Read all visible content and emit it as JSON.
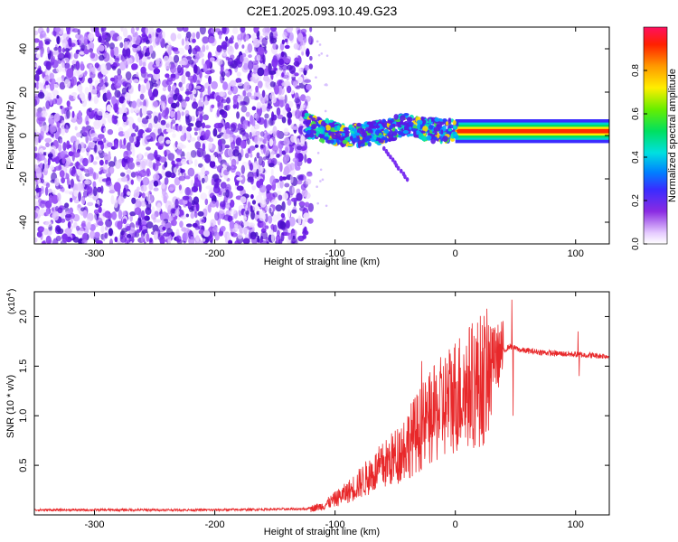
{
  "page": {
    "title": "C2E1.2025.093.10.49.G23"
  },
  "chart_data": [
    {
      "type": "heatmap",
      "xlabel": "Height of straight line (km)",
      "ylabel": "Frequency (Hz)",
      "xlim": [
        -350,
        128
      ],
      "ylim": [
        -50,
        50
      ],
      "xticks": [
        -300,
        -200,
        -100,
        0,
        100
      ],
      "yticks": [
        -40,
        -20,
        0,
        20,
        40
      ],
      "colorbar": {
        "label": "Normalized spectral amplitude",
        "range": [
          0.0,
          1.0
        ],
        "ticks": [
          "0.0",
          "0.2",
          "0.4",
          "0.6",
          "0.8"
        ]
      },
      "features": {
        "noise_region_x": [
          -350,
          -120
        ],
        "signal_trace": [
          {
            "x": -125,
            "y": 5
          },
          {
            "x": -115,
            "y": 3
          },
          {
            "x": -100,
            "y": 1
          },
          {
            "x": -80,
            "y": 0
          },
          {
            "x": -60,
            "y": 2
          },
          {
            "x": -40,
            "y": 5
          },
          {
            "x": -25,
            "y": 3
          },
          {
            "x": -10,
            "y": 2
          },
          {
            "x": 0,
            "y": 3
          },
          {
            "x": 50,
            "y": 2
          },
          {
            "x": 128,
            "y": 2
          }
        ],
        "stable_band_x": [
          0,
          128
        ],
        "stable_band_freq": 2
      }
    },
    {
      "type": "line",
      "xlabel": "Height of straight line (km)",
      "ylabel": "SNR (10 * v/v)",
      "yscale_label": "(x10",
      "yscale_exp": "4",
      "xlim": [
        -350,
        128
      ],
      "ylim": [
        0,
        2.25
      ],
      "xticks": [
        -300,
        -200,
        -100,
        0,
        100
      ],
      "yticks": [
        "0.5",
        "1.0",
        "1.5",
        "2.0"
      ],
      "series": [
        {
          "color": "#e8282a",
          "envelope": [
            {
              "x": -350,
              "y": 0.05
            },
            {
              "x": -200,
              "y": 0.05
            },
            {
              "x": -125,
              "y": 0.06
            },
            {
              "x": -110,
              "y": 0.1
            },
            {
              "x": -90,
              "y": 0.25
            },
            {
              "x": -70,
              "y": 0.45
            },
            {
              "x": -50,
              "y": 0.65
            },
            {
              "x": -30,
              "y": 0.95
            },
            {
              "x": -15,
              "y": 1.15
            },
            {
              "x": 0,
              "y": 1.35
            },
            {
              "x": 20,
              "y": 1.5
            },
            {
              "x": 35,
              "y": 1.6
            },
            {
              "x": 45,
              "y": 1.7
            },
            {
              "x": 55,
              "y": 1.66
            },
            {
              "x": 80,
              "y": 1.63
            },
            {
              "x": 128,
              "y": 1.6
            }
          ],
          "spikes": [
            {
              "x": 47,
              "y": 2.17
            },
            {
              "x": 48,
              "y": 1.0
            },
            {
              "x": 102,
              "y": 1.85
            },
            {
              "x": 103,
              "y": 1.4
            },
            {
              "x": -28,
              "y": 1.55
            },
            {
              "x": -10,
              "y": 1.5
            }
          ]
        }
      ]
    }
  ]
}
